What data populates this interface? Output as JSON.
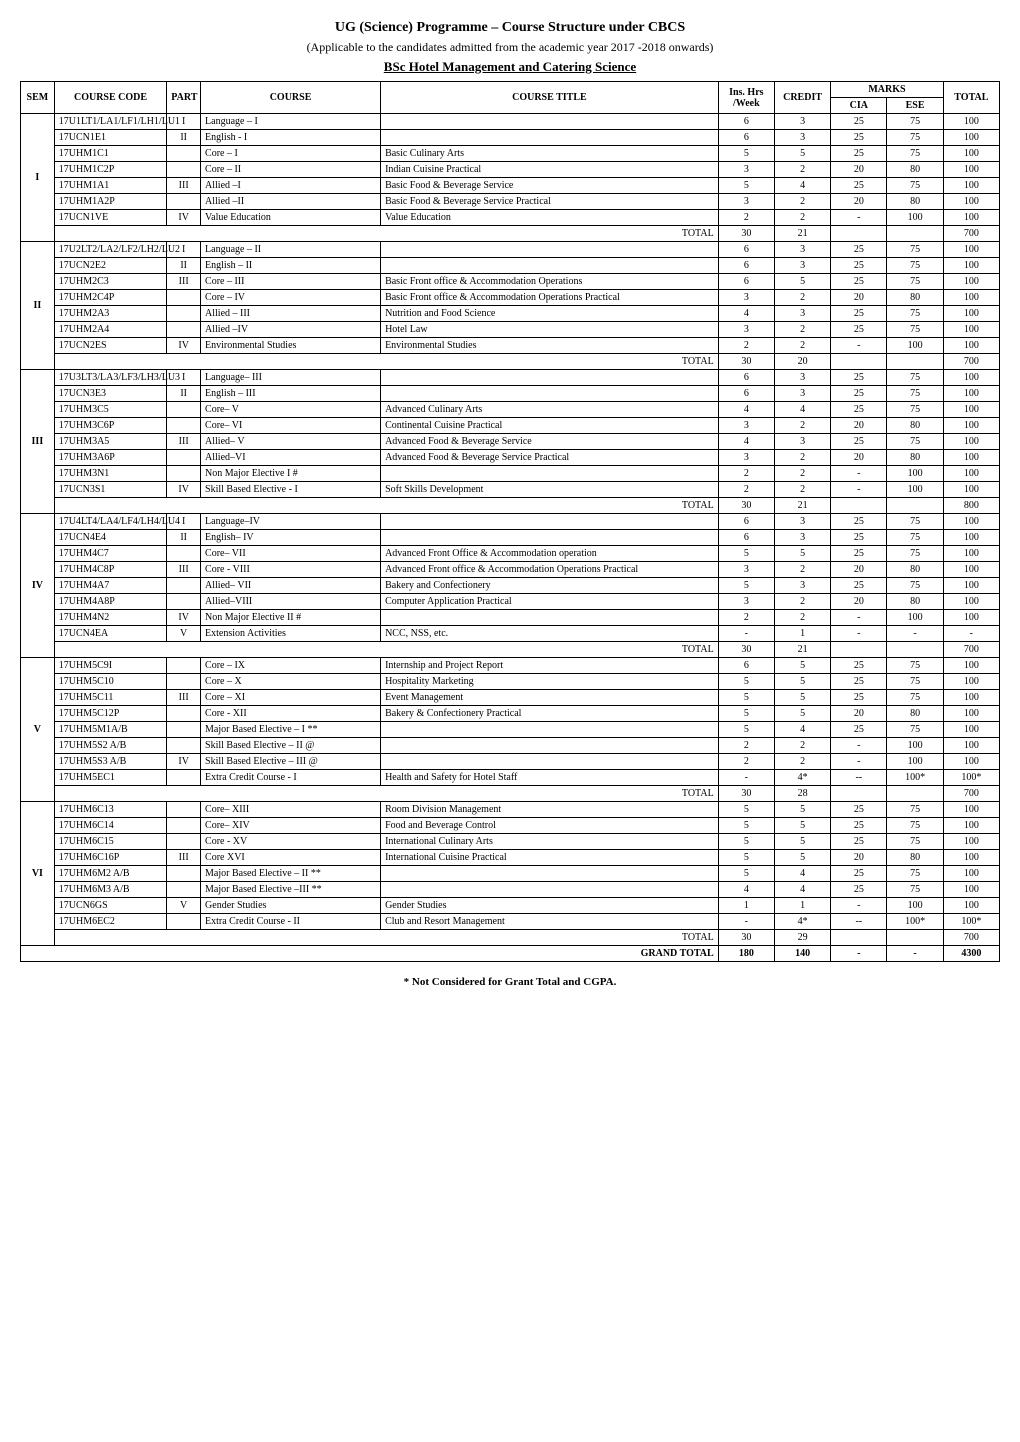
{
  "heading": {
    "title": "UG (Science) Programme – Course Structure under CBCS",
    "subtitle": "(Applicable to the candidates admitted from the academic year 2017 -2018 onwards)",
    "programme": "BSc Hotel Management and Catering Science"
  },
  "columns": {
    "sem": "SEM",
    "code": "COURSE CODE",
    "part": "PART",
    "course": "COURSE",
    "title": "COURSE TITLE",
    "hrs": "Ins. Hrs /Week",
    "cred": "CREDIT",
    "marks": "MARKS",
    "cia": "CIA",
    "ese": "ESE",
    "total": "TOTAL"
  },
  "semesters": [
    {
      "sem": "I",
      "rows": [
        {
          "code": "17U1LT1/LA1/LF1/LH1/LU1",
          "part": "I",
          "course": "Language – I",
          "title": "",
          "hrs": "6",
          "cred": "3",
          "cia": "25",
          "ese": "75",
          "tot": "100"
        },
        {
          "code": "17UCN1E1",
          "part": "II",
          "course": "English - I",
          "title": "",
          "hrs": "6",
          "cred": "3",
          "cia": "25",
          "ese": "75",
          "tot": "100"
        },
        {
          "code": "17UHM1C1",
          "part": "",
          "course": "Core  – I",
          "title": "Basic Culinary Arts",
          "hrs": "5",
          "cred": "5",
          "cia": "25",
          "ese": "75",
          "tot": "100"
        },
        {
          "code": "17UHM1C2P",
          "part": "",
          "course": "Core  – II",
          "title": "Indian Cuisine  Practical",
          "hrs": "3",
          "cred": "2",
          "cia": "20",
          "ese": "80",
          "tot": "100"
        },
        {
          "code": "17UHM1A1",
          "part": "III",
          "course": "Allied –I",
          "title": "Basic Food & Beverage Service",
          "hrs": "5",
          "cred": "4",
          "cia": "25",
          "ese": "75",
          "tot": "100"
        },
        {
          "code": "17UHM1A2P",
          "part": "",
          "course": "Allied –II",
          "title": "Basic Food & Beverage Service Practical",
          "hrs": "3",
          "cred": "2",
          "cia": "20",
          "ese": "80",
          "tot": "100"
        },
        {
          "code": "17UCN1VE",
          "part": "IV",
          "course": "Value Education",
          "title": "Value Education",
          "hrs": "2",
          "cred": "2",
          "cia": "-",
          "ese": "100",
          "tot": "100"
        }
      ],
      "total": {
        "hrs": "30",
        "cred": "21",
        "cia": "",
        "ese": "",
        "tot": "700"
      }
    },
    {
      "sem": "II",
      "rows": [
        {
          "code": "17U2LT2/LA2/LF2/LH2/LU2",
          "part": "I",
          "course": "Language – II",
          "title": "",
          "hrs": "6",
          "cred": "3",
          "cia": "25",
          "ese": "75",
          "tot": "100"
        },
        {
          "code": "17UCN2E2",
          "part": "II",
          "course": "English – II",
          "title": "",
          "hrs": "6",
          "cred": "3",
          "cia": "25",
          "ese": "75",
          "tot": "100"
        },
        {
          "code": "17UHM2C3",
          "part": "III",
          "course": "Core – III",
          "title": "Basic Front office & Accommodation Operations",
          "hrs": "6",
          "cred": "5",
          "cia": "25",
          "ese": "75",
          "tot": "100"
        },
        {
          "code": "17UHM2C4P",
          "part": "",
          "course": "Core – IV",
          "title": "Basic Front office & Accommodation Operations Practical",
          "hrs": "3",
          "cred": "2",
          "cia": "20",
          "ese": "80",
          "tot": "100"
        },
        {
          "code": "17UHM2A3",
          "part": "",
          "course": "Allied – III",
          "title": "Nutrition and Food Science",
          "hrs": "4",
          "cred": "3",
          "cia": "25",
          "ese": "75",
          "tot": "100"
        },
        {
          "code": "17UHM2A4",
          "part": "",
          "course": "Allied –IV",
          "title": "Hotel Law",
          "hrs": "3",
          "cred": "2",
          "cia": "25",
          "ese": "75",
          "tot": "100"
        },
        {
          "code": "17UCN2ES",
          "part": "IV",
          "course": "Environmental Studies",
          "title": "Environmental Studies",
          "hrs": "2",
          "cred": "2",
          "cia": "-",
          "ese": "100",
          "tot": "100"
        }
      ],
      "total": {
        "hrs": "30",
        "cred": "20",
        "cia": "",
        "ese": "",
        "tot": "700"
      }
    },
    {
      "sem": "III",
      "rows": [
        {
          "code": "17U3LT3/LA3/LF3/LH3/LU3",
          "part": "I",
          "course": "Language– III",
          "title": "",
          "hrs": "6",
          "cred": "3",
          "cia": "25",
          "ese": "75",
          "tot": "100"
        },
        {
          "code": "17UCN3E3",
          "part": "II",
          "course": "English – III",
          "title": "",
          "hrs": "6",
          "cred": "3",
          "cia": "25",
          "ese": "75",
          "tot": "100"
        },
        {
          "code": "17UHM3C5",
          "part": "",
          "course": "Core– V",
          "title": "Advanced Culinary Arts",
          "hrs": "4",
          "cred": "4",
          "cia": "25",
          "ese": "75",
          "tot": "100"
        },
        {
          "code": "17UHM3C6P",
          "part": "",
          "course": "Core– VI",
          "title": "Continental Cuisine Practical",
          "hrs": "3",
          "cred": "2",
          "cia": "20",
          "ese": "80",
          "tot": "100"
        },
        {
          "code": "17UHM3A5",
          "part": "III",
          "course": "Allied– V",
          "title": "Advanced Food & Beverage Service",
          "hrs": "4",
          "cred": "3",
          "cia": "25",
          "ese": "75",
          "tot": "100"
        },
        {
          "code": "17UHM3A6P",
          "part": "",
          "course": "Allied–VI",
          "title": "Advanced Food & Beverage Service Practical",
          "hrs": "3",
          "cred": "2",
          "cia": "20",
          "ese": "80",
          "tot": "100"
        },
        {
          "code": "17UHM3N1",
          "part": "",
          "course": "Non Major Elective I  #",
          "title": "",
          "hrs": "2",
          "cred": "2",
          "cia": "-",
          "ese": "100",
          "tot": "100"
        },
        {
          "code": "17UCN3S1",
          "part": "IV",
          "course": "Skill Based Elective - I",
          "title": "Soft Skills Development",
          "hrs": "2",
          "cred": "2",
          "cia": "-",
          "ese": "100",
          "tot": "100"
        }
      ],
      "total": {
        "hrs": "30",
        "cred": "21",
        "cia": "",
        "ese": "",
        "tot": "800"
      }
    },
    {
      "sem": "IV",
      "rows": [
        {
          "code": "17U4LT4/LA4/LF4/LH4/LU4",
          "part": "I",
          "course": "Language–IV",
          "title": "",
          "hrs": "6",
          "cred": "3",
          "cia": "25",
          "ese": "75",
          "tot": "100"
        },
        {
          "code": "17UCN4E4",
          "part": "II",
          "course": "English– IV",
          "title": "",
          "hrs": "6",
          "cred": "3",
          "cia": "25",
          "ese": "75",
          "tot": "100"
        },
        {
          "code": "17UHM4C7",
          "part": "",
          "course": "Core– VII",
          "title": "Advanced Front Office  & Accommodation operation",
          "hrs": "5",
          "cred": "5",
          "cia": "25",
          "ese": "75",
          "tot": "100"
        },
        {
          "code": "17UHM4C8P",
          "part": "III",
          "course": "Core  - VIII",
          "title": "Advanced Front office & Accommodation Operations Practical",
          "hrs": "3",
          "cred": "2",
          "cia": "20",
          "ese": "80",
          "tot": "100"
        },
        {
          "code": "17UHM4A7",
          "part": "",
          "course": "Allied– VII",
          "title": "Bakery and Confectionery",
          "hrs": "5",
          "cred": "3",
          "cia": "25",
          "ese": "75",
          "tot": "100"
        },
        {
          "code": "17UHM4A8P",
          "part": "",
          "course": "Allied–VIII",
          "title": "Computer Application Practical",
          "hrs": "3",
          "cred": "2",
          "cia": "20",
          "ese": "80",
          "tot": "100"
        },
        {
          "code": "17UHM4N2",
          "part": "IV",
          "course": "Non Major Elective II  #",
          "title": "",
          "hrs": "2",
          "cred": "2",
          "cia": "-",
          "ese": "100",
          "tot": "100"
        },
        {
          "code": "17UCN4EA",
          "part": "V",
          "course": "Extension Activities",
          "title": "NCC, NSS, etc.",
          "hrs": "-",
          "cred": "1",
          "cia": "-",
          "ese": "-",
          "tot": "-"
        }
      ],
      "total": {
        "hrs": "30",
        "cred": "21",
        "cia": "",
        "ese": "",
        "tot": "700"
      }
    },
    {
      "sem": "V",
      "rows": [
        {
          "code": "17UHM5C9I",
          "part": "",
          "course": "Core –  IX",
          "title": "Internship and Project Report",
          "hrs": "6",
          "cred": "5",
          "cia": "25",
          "ese": "75",
          "tot": "100"
        },
        {
          "code": "17UHM5C10",
          "part": "",
          "course": "Core  –  X",
          "title": "Hospitality Marketing",
          "hrs": "5",
          "cred": "5",
          "cia": "25",
          "ese": "75",
          "tot": "100"
        },
        {
          "code": "17UHM5C11",
          "part": "III",
          "course": "Core – XI",
          "title": "Event Management",
          "hrs": "5",
          "cred": "5",
          "cia": "25",
          "ese": "75",
          "tot": "100"
        },
        {
          "code": "17UHM5C12P",
          "part": "",
          "course": "Core  - XII",
          "title": "Bakery & Confectionery Practical",
          "hrs": "5",
          "cred": "5",
          "cia": "20",
          "ese": "80",
          "tot": "100"
        },
        {
          "code": "17UHM5M1A/B",
          "part": "",
          "course": "Major Based Elective  – I **",
          "title": "",
          "hrs": "5",
          "cred": "4",
          "cia": "25",
          "ese": "75",
          "tot": "100"
        },
        {
          "code": "17UHM5S2 A/B",
          "part": "",
          "course": "Skill Based Elective – II @",
          "title": "",
          "hrs": "2",
          "cred": "2",
          "cia": "-",
          "ese": "100",
          "tot": "100"
        },
        {
          "code": "17UHM5S3 A/B",
          "part": "IV",
          "course": "Skill Based Elective – III @",
          "title": "",
          "hrs": "2",
          "cred": "2",
          "cia": "-",
          "ese": "100",
          "tot": "100"
        },
        {
          "code": "17UHM5EC1",
          "part": "",
          "course": "Extra Credit Course - I",
          "title": "Health and Safety for Hotel Staff",
          "hrs": "-",
          "cred": "4*",
          "cia": "--",
          "ese": "100*",
          "tot": "100*"
        }
      ],
      "total": {
        "hrs": "30",
        "cred": "28",
        "cia": "",
        "ese": "",
        "tot": "700"
      }
    },
    {
      "sem": "VI",
      "rows": [
        {
          "code": "17UHM6C13",
          "part": "",
          "course": "Core– XIII",
          "title": "Room Division Management",
          "hrs": "5",
          "cred": "5",
          "cia": "25",
          "ese": "75",
          "tot": "100"
        },
        {
          "code": "17UHM6C14",
          "part": "",
          "course": "Core– XIV",
          "title": "Food and Beverage Control",
          "hrs": "5",
          "cred": "5",
          "cia": "25",
          "ese": "75",
          "tot": "100"
        },
        {
          "code": "17UHM6C15",
          "part": "",
          "course": "Core - XV",
          "title": "International Culinary Arts",
          "hrs": "5",
          "cred": "5",
          "cia": "25",
          "ese": "75",
          "tot": "100"
        },
        {
          "code": "17UHM6C16P",
          "part": "III",
          "course": "Core XVI",
          "title": "International Cuisine Practical",
          "hrs": "5",
          "cred": "5",
          "cia": "20",
          "ese": "80",
          "tot": "100"
        },
        {
          "code": "17UHM6M2 A/B",
          "part": "",
          "course": "Major Based Elective – II **",
          "title": "",
          "hrs": "5",
          "cred": "4",
          "cia": "25",
          "ese": "75",
          "tot": "100"
        },
        {
          "code": "17UHM6M3 A/B",
          "part": "",
          "course": "Major Based Elective –III **",
          "title": "",
          "hrs": "4",
          "cred": "4",
          "cia": "25",
          "ese": "75",
          "tot": "100"
        },
        {
          "code": "17UCN6GS",
          "part": "V",
          "course": "Gender Studies",
          "title": "Gender Studies",
          "hrs": "1",
          "cred": "1",
          "cia": "-",
          "ese": "100",
          "tot": "100"
        },
        {
          "code": "17UHM6EC2",
          "part": "",
          "course": "Extra Credit Course - II",
          "title": "Club and  Resort Management",
          "hrs": "-",
          "cred": "4*",
          "cia": "--",
          "ese": "100*",
          "tot": "100*"
        }
      ],
      "total": {
        "hrs": "30",
        "cred": "29",
        "cia": "",
        "ese": "",
        "tot": "700"
      }
    }
  ],
  "grand_total": {
    "label": "GRAND TOTAL",
    "hrs": "180",
    "cred": "140",
    "cia": "-",
    "ese": "-",
    "tot": "4300"
  },
  "total_label": "TOTAL",
  "footnote": "*   Not Considered for Grant Total and CGPA."
}
